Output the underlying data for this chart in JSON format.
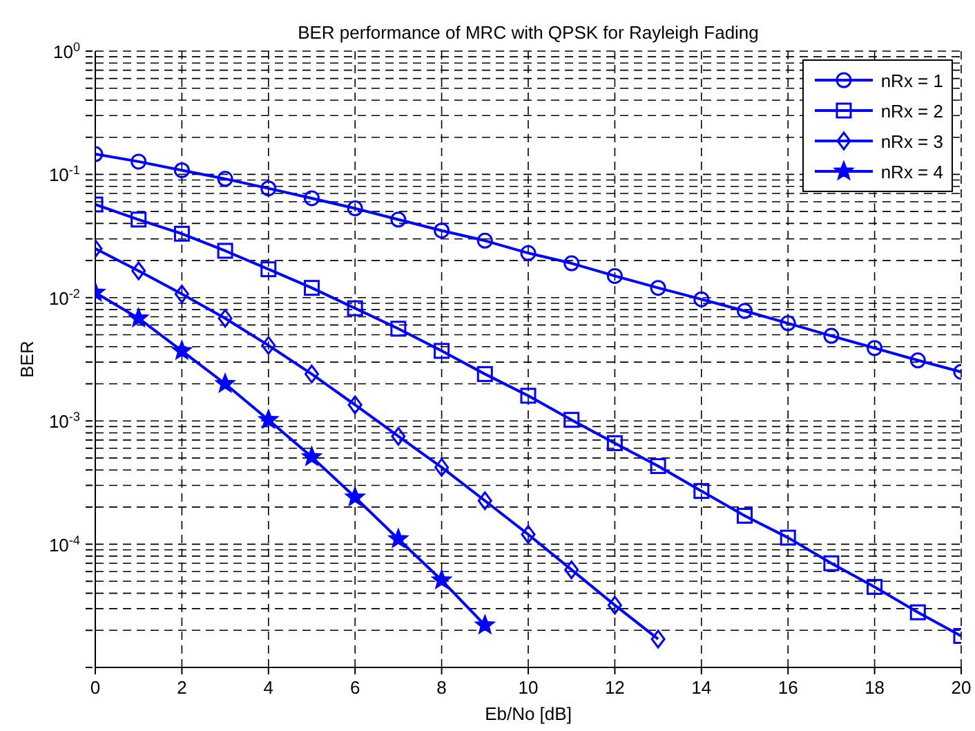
{
  "chart_data": {
    "type": "line",
    "title": "BER performance of MRC with QPSK for Rayleigh Fading",
    "xlabel": "Eb/No [dB]",
    "ylabel": "BER",
    "x": [
      0,
      1,
      2,
      3,
      4,
      5,
      6,
      7,
      8,
      9,
      10,
      11,
      12,
      13,
      14,
      15,
      16,
      17,
      18,
      19,
      20
    ],
    "series": [
      {
        "name": "nRx = 1",
        "color": "#0000ff",
        "marker": "circle",
        "values": [
          0.146,
          0.127,
          0.108,
          0.092,
          0.077,
          0.064,
          0.053,
          0.043,
          0.035,
          0.029,
          0.023,
          0.019,
          0.015,
          0.012,
          0.0097,
          0.0078,
          0.0062,
          0.0049,
          0.0039,
          0.0031,
          0.0025
        ]
      },
      {
        "name": "nRx = 2",
        "color": "#0000ff",
        "marker": "square",
        "values": [
          0.057,
          0.043,
          0.033,
          0.024,
          0.017,
          0.012,
          0.0082,
          0.0056,
          0.0037,
          0.0024,
          0.0016,
          0.00102,
          0.00066,
          0.00043,
          0.00027,
          0.00017,
          0.000113,
          7e-05,
          4.5e-05,
          2.8e-05,
          1.8e-05
        ]
      },
      {
        "name": "nRx = 3",
        "color": "#0000ff",
        "marker": "diamond",
        "values": [
          0.025,
          0.0165,
          0.0107,
          0.0068,
          0.0041,
          0.0024,
          0.00135,
          0.00075,
          0.00042,
          0.000225,
          0.00012,
          6.2e-05,
          3.2e-05,
          1.7e-05,
          null,
          null,
          null,
          null,
          null,
          null,
          null
        ]
      },
      {
        "name": "nRx = 4",
        "color": "#0000ff",
        "marker": "star",
        "values": [
          0.011,
          0.0068,
          0.0037,
          0.002,
          0.00102,
          0.00051,
          0.00024,
          0.00011,
          5.1e-05,
          2.2e-05,
          null,
          null,
          null,
          null,
          null,
          null,
          null,
          null,
          null,
          null,
          null
        ]
      }
    ],
    "log": "y",
    "xlim": [
      0,
      20
    ],
    "xticks": [
      0,
      2,
      4,
      6,
      8,
      10,
      12,
      14,
      16,
      18,
      20
    ],
    "ylim": [
      1e-05,
      1
    ],
    "yticks": [
      {
        "value": 1e-05,
        "label": null
      },
      {
        "value": 2e-05,
        "label": null
      },
      {
        "value": 3e-05,
        "label": null
      },
      {
        "value": 4e-05,
        "label": null
      },
      {
        "value": 5e-05,
        "label": null
      },
      {
        "value": 6e-05,
        "label": null
      },
      {
        "value": 7e-05,
        "label": null
      },
      {
        "value": 8e-05,
        "label": null
      },
      {
        "value": 9e-05,
        "label": null
      },
      {
        "value": 0.0001,
        "label": "10$^{-4}$"
      },
      {
        "value": 0.0002,
        "label": null
      },
      {
        "value": 0.0003,
        "label": null
      },
      {
        "value": 0.0004,
        "label": null
      },
      {
        "value": 0.0005,
        "label": null
      },
      {
        "value": 0.0006,
        "label": null
      },
      {
        "value": 0.0007,
        "label": null
      },
      {
        "value": 0.0008,
        "label": null
      },
      {
        "value": 0.0009,
        "label": null
      },
      {
        "value": 0.001,
        "label": "10$^{-3}$"
      },
      {
        "value": 0.002,
        "label": null
      },
      {
        "value": 0.003,
        "label": null
      },
      {
        "value": 0.004,
        "label": null
      },
      {
        "value": 0.005,
        "label": null
      },
      {
        "value": 0.006,
        "label": null
      },
      {
        "value": 0.007,
        "label": null
      },
      {
        "value": 0.008,
        "label": null
      },
      {
        "value": 0.009,
        "label": null
      },
      {
        "value": 0.01,
        "label": "10$^{-2}$"
      },
      {
        "value": 0.02,
        "label": null
      },
      {
        "value": 0.03,
        "label": null
      },
      {
        "value": 0.04,
        "label": null
      },
      {
        "value": 0.05,
        "label": null
      },
      {
        "value": 0.06,
        "label": null
      },
      {
        "value": 0.07,
        "label": null
      },
      {
        "value": 0.08,
        "label": null
      },
      {
        "value": 0.09,
        "label": null
      },
      {
        "value": 0.1,
        "label": "10$^{-1}$"
      },
      {
        "value": 0.2,
        "label": null
      },
      {
        "value": 0.3,
        "label": null
      },
      {
        "value": 0.4,
        "label": null
      },
      {
        "value": 0.5,
        "label": null
      },
      {
        "value": 0.6,
        "label": null
      },
      {
        "value": 0.7,
        "label": null
      },
      {
        "value": 0.8,
        "label": null
      },
      {
        "value": 0.9,
        "label": null
      },
      {
        "value": 1,
        "label": "10$^{0}$"
      }
    ],
    "grid": true,
    "legend": "top right",
    "line_style": "solid"
  }
}
